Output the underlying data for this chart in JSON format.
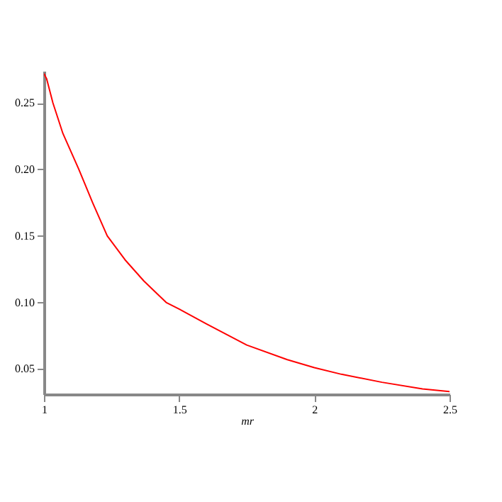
{
  "chart_data": {
    "type": "line",
    "xlabel": "mr",
    "x": [
      1,
      1.01,
      1.033,
      1.07,
      1.129,
      1.18,
      1.234,
      1.3,
      1.37,
      1.452,
      1.5,
      1.6,
      1.75,
      1.9,
      2,
      2.1,
      2.25,
      2.4,
      2.5
    ],
    "series": [
      {
        "color": "#ff0000",
        "values": [
          0.272,
          0.268,
          0.25,
          0.227,
          0.2,
          0.175,
          0.15,
          0.132,
          0.116,
          0.1,
          0.095,
          0.084,
          0.068,
          0.057,
          0.051,
          0.046,
          0.04,
          0.035,
          0.033
        ]
      }
    ],
    "xlim": [
      1,
      2.5
    ],
    "ylim": [
      0.031,
      0.274
    ],
    "xticks": [
      1,
      1.5,
      2,
      2.5
    ],
    "yticks": [
      0.05,
      {
        "value": 0.1,
        "label": "0.10"
      },
      0.15,
      {
        "value": 0.2,
        "label": "0.20"
      },
      0.25
    ],
    "grid": false,
    "legend": false,
    "marker": "none",
    "line_style": "solid"
  }
}
